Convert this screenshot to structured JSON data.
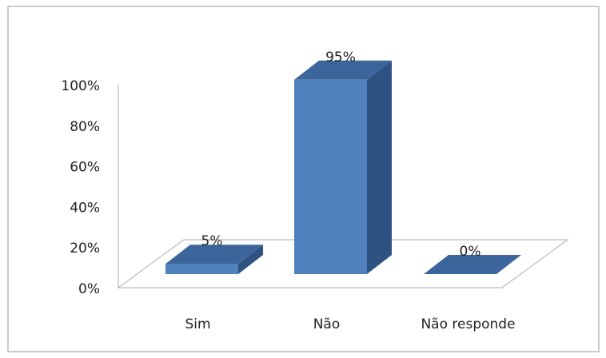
{
  "chart_data": {
    "type": "bar3d",
    "categories": [
      "Sim",
      "Não",
      "Não responde"
    ],
    "values": [
      5,
      95,
      0
    ],
    "value_labels": [
      "5%",
      "95%",
      "0%"
    ],
    "color": "#4f81bd",
    "ylim": [
      0,
      100
    ],
    "yticks": [
      {
        "value": 0,
        "label": "0%"
      },
      {
        "value": 20,
        "label": "20%"
      },
      {
        "value": 40,
        "label": "40%"
      },
      {
        "value": 60,
        "label": "60%"
      },
      {
        "value": 80,
        "label": "80%"
      },
      {
        "value": 100,
        "label": "100%"
      }
    ]
  }
}
